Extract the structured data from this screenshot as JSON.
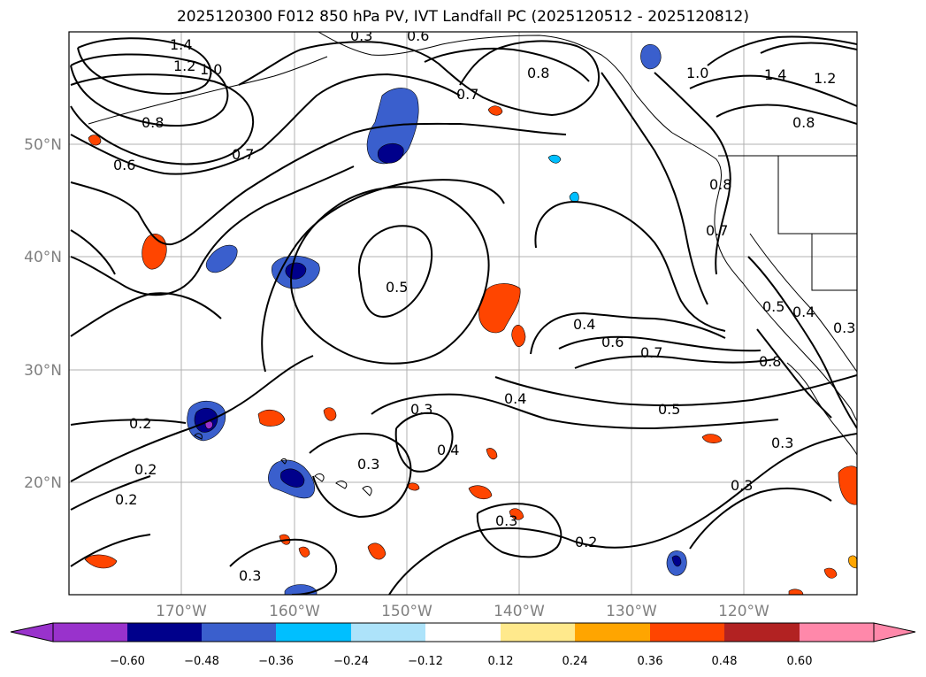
{
  "title": "2025120300 F012 850 hPa PV, IVT Landfall PC (2025120512 - 2025120812)",
  "latitude_labels": [
    "50°N",
    "40°N",
    "30°N",
    "20°N"
  ],
  "longitude_labels": [
    "170°W",
    "160°W",
    "150°W",
    "140°W",
    "130°W",
    "120°W"
  ],
  "contour_labels": [
    "1.4",
    "1.2",
    "1.0",
    "0.6",
    "0.8",
    "0.7",
    "0.6",
    "0.7",
    "0.8",
    "1.0",
    "1.4",
    "1.2",
    "0.8",
    "0.8",
    "0.7",
    "0.5",
    "0.4",
    "0.6",
    "0.7",
    "0.5",
    "0.4",
    "0.3",
    "0.4",
    "0.3",
    "0.2",
    "0.2",
    "0.2",
    "0.3",
    "0.3",
    "0.3",
    "0.2",
    "0.3",
    "0.3",
    "0.5",
    "0.4",
    "0.3",
    "0.8"
  ],
  "colorbar": {
    "ticks": [
      "−0.60",
      "−0.48",
      "−0.36",
      "−0.24",
      "−0.12",
      "0.12",
      "0.24",
      "0.36",
      "0.48",
      "0.60"
    ],
    "colors": [
      "#9932CC",
      "#00008B",
      "#3A5FCD",
      "#00BFFF",
      "#ADE3FA",
      "#FFFFFF",
      "#FFE98C",
      "#FFA500",
      "#FF4500",
      "#B22222",
      "#FF88AA"
    ]
  },
  "colors": {
    "grid": "#b0b0b0",
    "contour": "#000000",
    "coast": "#000000"
  }
}
